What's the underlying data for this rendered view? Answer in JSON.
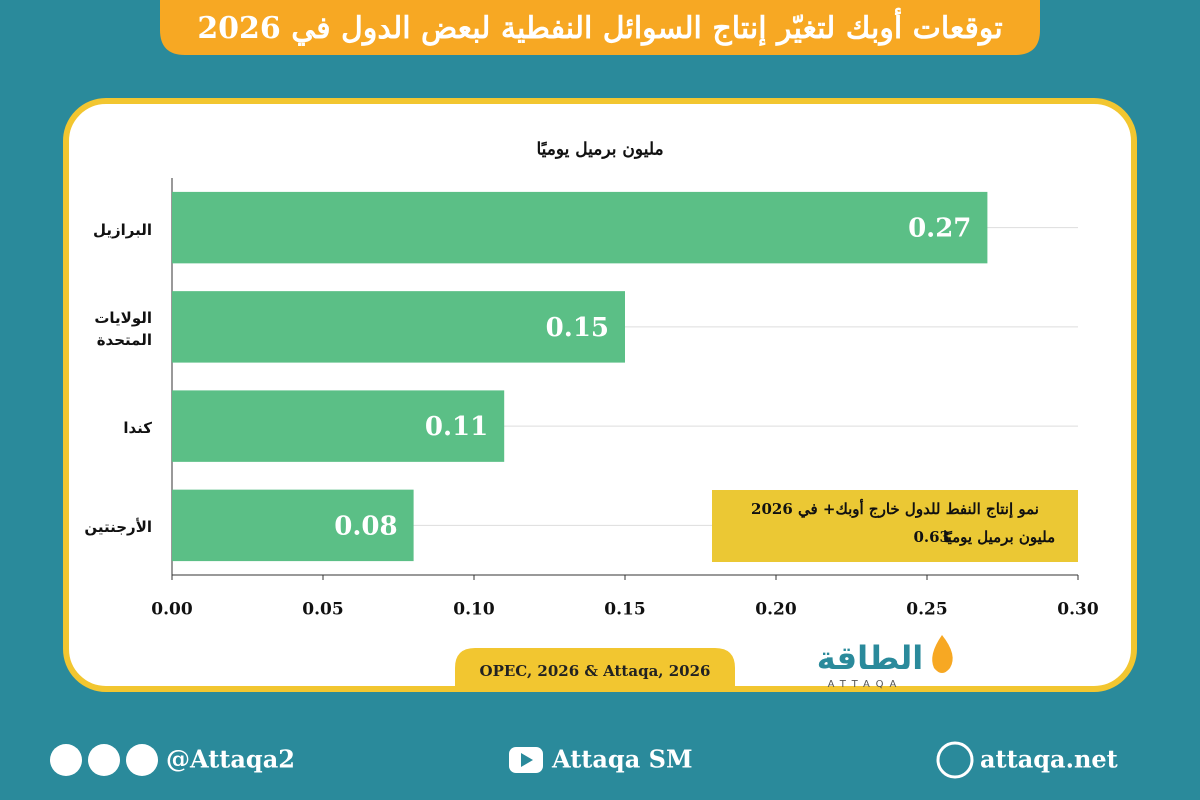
{
  "chart_data": {
    "type": "bar",
    "orientation": "horizontal",
    "title": "توقعات أوبك لتغيّر إنتاج السوائل النفطية لبعض الدول في 2026",
    "y_label": "مليون برميل يوميًا",
    "categories": [
      "البرازيل",
      "الولايات المتحدة",
      "كندا",
      "الأرجنتين"
    ],
    "values": [
      0.27,
      0.15,
      0.11,
      0.08
    ],
    "color": "#5bbf86",
    "xlim": [
      0,
      0.3
    ],
    "xticks": [
      {
        "value": 0,
        "label": "0.00"
      },
      {
        "value": 0.05,
        "label": "0.05"
      },
      {
        "value": 0.1,
        "label": "0.10"
      },
      {
        "value": 0.15,
        "label": "0.15"
      },
      {
        "value": 0.2,
        "label": "0.20"
      },
      {
        "value": 0.25,
        "label": "0.25"
      },
      {
        "value": 0.3,
        "label": "0.30"
      }
    ],
    "annotation": {
      "title": "نمو إنتاج النفط للدول خارج أوبك+ في 2026",
      "value": 0.63,
      "unit": "مليون برميل يوميًا"
    },
    "source": "OPEC, 2026 & Attaqa, 2026"
  },
  "logo": {
    "name": "الطاقة",
    "latin": "ATTAQA"
  },
  "footer": {
    "social": "@Attaqa2",
    "youtube": "Attaqa SM",
    "website": "attaqa.net"
  }
}
